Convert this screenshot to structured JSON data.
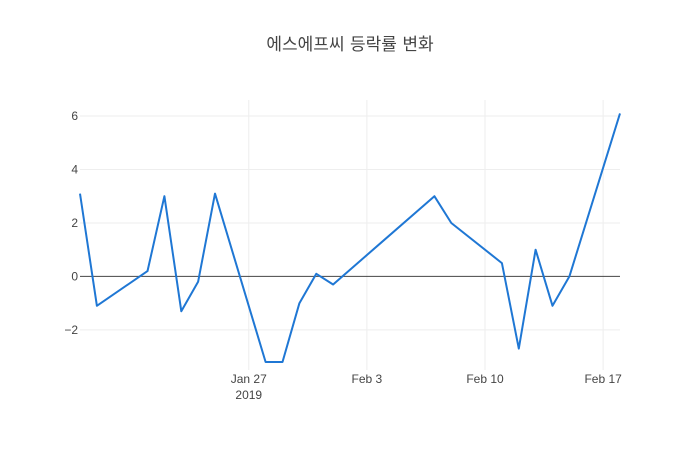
{
  "chart_data": {
    "type": "line",
    "title": "에스에프씨 등락률 변화",
    "xlabel": "",
    "ylabel": "",
    "grid": true,
    "legend": "none",
    "colors": {
      "line": "#1f77d4",
      "grid": "#eeeeee",
      "zeroline": "#444444",
      "text": "#444444"
    },
    "xlim": [
      "2019-01-17",
      "2019-02-18"
    ],
    "ylim": [
      -3.5,
      6.6
    ],
    "x_ticks": [
      {
        "value": "2019-01-27",
        "label": "Jan 27",
        "sublabel": "2019"
      },
      {
        "value": "2019-02-03",
        "label": "Feb 3",
        "sublabel": ""
      },
      {
        "value": "2019-02-10",
        "label": "Feb 10",
        "sublabel": ""
      },
      {
        "value": "2019-02-17",
        "label": "Feb 17",
        "sublabel": ""
      }
    ],
    "y_ticks": [
      {
        "value": -2,
        "label": "−2"
      },
      {
        "value": 0,
        "label": "0"
      },
      {
        "value": 2,
        "label": "2"
      },
      {
        "value": 4,
        "label": "4"
      },
      {
        "value": 6,
        "label": "6"
      }
    ],
    "series": [
      {
        "x": [
          "2019-01-17",
          "2019-01-18",
          "2019-01-21",
          "2019-01-22",
          "2019-01-23",
          "2019-01-24",
          "2019-01-25",
          "2019-01-28",
          "2019-01-29",
          "2019-01-30",
          "2019-01-31",
          "2019-02-01",
          "2019-02-07",
          "2019-02-08",
          "2019-02-11",
          "2019-02-12",
          "2019-02-13",
          "2019-02-14",
          "2019-02-15",
          "2019-02-18"
        ],
        "values": [
          3.1,
          -1.1,
          0.2,
          3.0,
          -1.3,
          -0.2,
          3.1,
          -3.2,
          -3.2,
          -1.0,
          0.1,
          -0.3,
          3.0,
          2.0,
          0.5,
          -2.7,
          1.0,
          -1.1,
          0.0,
          6.1
        ]
      }
    ]
  }
}
